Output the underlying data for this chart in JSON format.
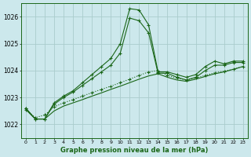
{
  "title": "Graphe pression niveau de la mer (hPa)",
  "background_color": "#cce8ec",
  "grid_color": "#aacccc",
  "line_color": "#1a6618",
  "xlim": [
    -0.5,
    23.5
  ],
  "ylim": [
    1021.5,
    1026.5
  ],
  "yticks": [
    1022,
    1023,
    1024,
    1025,
    1026
  ],
  "xticks": [
    0,
    1,
    2,
    3,
    4,
    5,
    6,
    7,
    8,
    9,
    10,
    11,
    12,
    13,
    14,
    15,
    16,
    17,
    18,
    19,
    20,
    21,
    22,
    23
  ],
  "series1": {
    "x": [
      0,
      1,
      2,
      3,
      4,
      5,
      6,
      7,
      8,
      9,
      10,
      11,
      12,
      13,
      14,
      15,
      16,
      17,
      18,
      19,
      20,
      21,
      22,
      23
    ],
    "y": [
      1022.6,
      1022.2,
      1022.2,
      1022.8,
      1023.05,
      1023.25,
      1023.55,
      1023.85,
      1024.15,
      1024.45,
      1025.0,
      1026.3,
      1026.25,
      1025.7,
      1023.95,
      1023.95,
      1023.85,
      1023.75,
      1023.85,
      1024.15,
      1024.35,
      1024.25,
      1024.35,
      1024.35
    ],
    "marker": "+"
  },
  "series2": {
    "x": [
      0,
      1,
      2,
      3,
      4,
      5,
      6,
      7,
      8,
      9,
      10,
      11,
      12,
      13,
      14,
      15,
      16,
      17,
      18,
      19,
      20,
      21,
      22,
      23
    ],
    "y": [
      1022.6,
      1022.2,
      1022.2,
      1022.75,
      1023.0,
      1023.2,
      1023.45,
      1023.7,
      1023.95,
      1024.2,
      1024.65,
      1025.95,
      1025.85,
      1025.4,
      1023.9,
      1023.9,
      1023.75,
      1023.65,
      1023.75,
      1024.0,
      1024.2,
      1024.2,
      1024.3,
      1024.3
    ],
    "marker": "+"
  },
  "series3": {
    "x": [
      0,
      1,
      2,
      3,
      4,
      5,
      6,
      7,
      8,
      9,
      10,
      11,
      12,
      13,
      14,
      15,
      16,
      17,
      18,
      19,
      20,
      21,
      22,
      23
    ],
    "y": [
      1022.55,
      1022.25,
      1022.35,
      1022.65,
      1022.8,
      1022.92,
      1023.05,
      1023.18,
      1023.3,
      1023.42,
      1023.55,
      1023.68,
      1023.82,
      1023.95,
      1024.0,
      1023.82,
      1023.72,
      1023.65,
      1023.72,
      1023.82,
      1023.92,
      1023.98,
      1024.05,
      1024.15
    ],
    "marker": "+",
    "linestyle": "dotted"
  },
  "series4": {
    "x": [
      0,
      1,
      2,
      3,
      4,
      5,
      6,
      7,
      8,
      9,
      10,
      11,
      12,
      13,
      14,
      15,
      16,
      17,
      18,
      19,
      20,
      21,
      22,
      23
    ],
    "y": [
      1022.55,
      1022.2,
      1022.2,
      1022.5,
      1022.68,
      1022.8,
      1022.92,
      1023.05,
      1023.17,
      1023.3,
      1023.42,
      1023.55,
      1023.68,
      1023.8,
      1023.88,
      1023.75,
      1023.65,
      1023.6,
      1023.68,
      1023.78,
      1023.88,
      1023.95,
      1024.05,
      1024.15
    ],
    "marker": null,
    "linestyle": "solid"
  }
}
